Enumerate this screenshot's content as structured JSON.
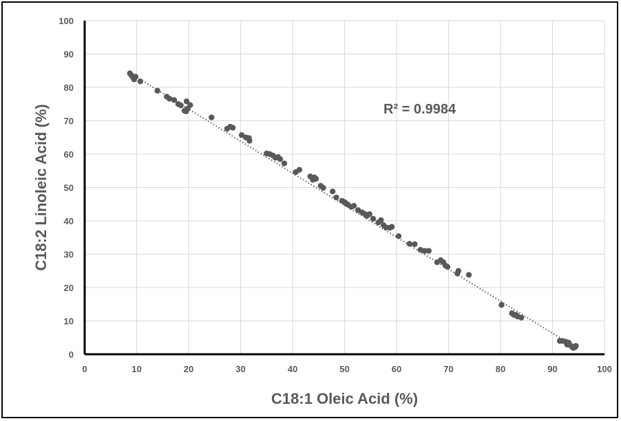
{
  "chart_data": {
    "type": "scatter",
    "xlabel": "C18:1 Oleic Acid (%)",
    "ylabel": "C18:2 Linoleic Acid (%)",
    "xlim": [
      0,
      100
    ],
    "ylim": [
      0,
      100
    ],
    "xticks": [
      0,
      10,
      20,
      30,
      40,
      50,
      60,
      70,
      80,
      90,
      100
    ],
    "yticks": [
      0,
      10,
      20,
      30,
      40,
      50,
      60,
      70,
      80,
      90,
      100
    ],
    "grid": true,
    "annotation": "R² = 0.9984",
    "trendline": {
      "style": "dotted",
      "x": [
        8.5,
        94.5
      ],
      "y": [
        84.5,
        2.0
      ]
    },
    "colors": {
      "point": "#595959",
      "grid": "#d9d9d9",
      "trendline": "#595959",
      "axis": "#000000",
      "text": "#595959"
    },
    "points": [
      [
        8.7,
        84.2
      ],
      [
        9.0,
        83.6
      ],
      [
        9.3,
        83.0
      ],
      [
        9.5,
        82.4
      ],
      [
        9.8,
        83.2
      ],
      [
        10.7,
        81.8
      ],
      [
        14.0,
        79.0
      ],
      [
        15.8,
        77.2
      ],
      [
        16.3,
        76.6
      ],
      [
        17.2,
        76.2
      ],
      [
        18.0,
        75.0
      ],
      [
        18.5,
        74.6
      ],
      [
        19.2,
        73.0
      ],
      [
        19.5,
        72.8
      ],
      [
        19.8,
        73.6
      ],
      [
        19.6,
        75.8
      ],
      [
        20.3,
        74.7
      ],
      [
        24.4,
        71.0
      ],
      [
        27.4,
        67.6
      ],
      [
        28.0,
        68.2
      ],
      [
        28.5,
        67.9
      ],
      [
        30.2,
        65.7
      ],
      [
        31.0,
        65.0
      ],
      [
        31.6,
        64.8
      ],
      [
        31.7,
        64.0
      ],
      [
        35.0,
        60.2
      ],
      [
        35.6,
        60.0
      ],
      [
        36.2,
        59.6
      ],
      [
        36.7,
        58.9
      ],
      [
        37.2,
        59.1
      ],
      [
        37.6,
        58.5
      ],
      [
        38.4,
        57.2
      ],
      [
        40.6,
        54.6
      ],
      [
        41.3,
        55.3
      ],
      [
        43.4,
        53.3
      ],
      [
        43.9,
        52.3
      ],
      [
        44.2,
        53.0
      ],
      [
        44.5,
        52.6
      ],
      [
        45.4,
        50.5
      ],
      [
        45.9,
        49.9
      ],
      [
        47.7,
        48.8
      ],
      [
        48.4,
        47.0
      ],
      [
        49.5,
        46.0
      ],
      [
        50.0,
        45.6
      ],
      [
        50.2,
        45.3
      ],
      [
        50.6,
        44.9
      ],
      [
        51.3,
        44.2
      ],
      [
        51.8,
        44.5
      ],
      [
        52.6,
        43.2
      ],
      [
        53.4,
        42.5
      ],
      [
        54.0,
        42.0
      ],
      [
        54.3,
        41.5
      ],
      [
        54.8,
        42.0
      ],
      [
        55.5,
        40.6
      ],
      [
        56.5,
        39.5
      ],
      [
        57.0,
        40.2
      ],
      [
        57.5,
        38.7
      ],
      [
        58.0,
        38.0
      ],
      [
        58.7,
        37.9
      ],
      [
        59.1,
        38.2
      ],
      [
        60.4,
        35.4
      ],
      [
        62.5,
        33.1
      ],
      [
        63.5,
        33.0
      ],
      [
        64.6,
        31.3
      ],
      [
        65.4,
        31.0
      ],
      [
        66.2,
        31.0
      ],
      [
        67.8,
        27.6
      ],
      [
        68.5,
        28.2
      ],
      [
        69.0,
        27.6
      ],
      [
        69.4,
        26.6
      ],
      [
        69.8,
        26.2
      ],
      [
        71.7,
        24.2
      ],
      [
        71.9,
        25.0
      ],
      [
        73.9,
        23.8
      ],
      [
        80.2,
        14.8
      ],
      [
        82.2,
        12.3
      ],
      [
        82.7,
        11.8
      ],
      [
        83.0,
        11.8
      ],
      [
        83.3,
        11.3
      ],
      [
        84.0,
        11.0
      ],
      [
        82.5,
        11.9
      ],
      [
        91.4,
        4.0
      ],
      [
        91.9,
        4.0
      ],
      [
        92.5,
        3.8
      ],
      [
        92.8,
        2.9
      ],
      [
        93.1,
        3.5
      ],
      [
        93.5,
        2.6
      ],
      [
        93.8,
        2.2
      ],
      [
        94.0,
        1.9
      ],
      [
        94.3,
        2.1
      ],
      [
        94.5,
        2.5
      ]
    ]
  }
}
